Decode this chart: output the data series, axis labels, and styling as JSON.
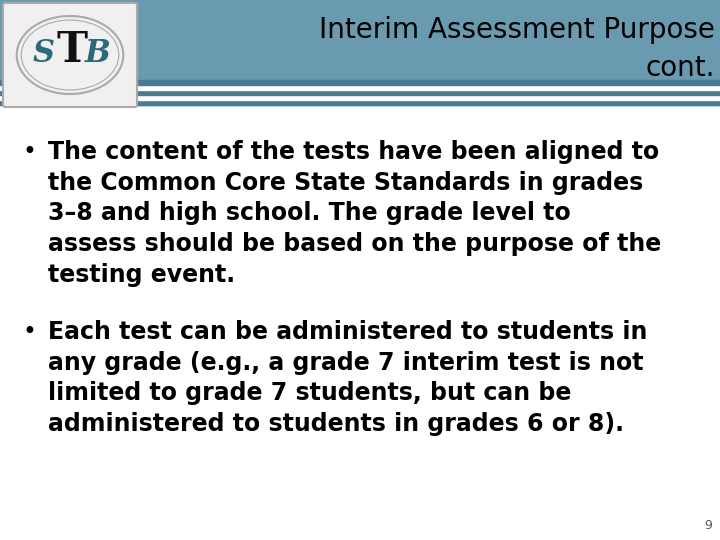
{
  "title_line1": "Interim Assessment Purpose",
  "title_line2": "cont.",
  "title_fontsize": 20,
  "title_color": "#000000",
  "header_bg_color": "#6a9aaf",
  "header_stripe_white": "#ffffff",
  "header_stripe_dark": "#4a7a94",
  "body_bg_color": "#ffffff",
  "bullet1_line1": "The content of the tests have been aligned to",
  "bullet1_line2": "the Common Core State Standards in grades",
  "bullet1_line3": "3–8 and high school. The grade level to",
  "bullet1_line4": "assess should be based on the purpose of the",
  "bullet1_line5": "testing event.",
  "bullet2_line1": "Each test can be administered to students in",
  "bullet2_line2": "any grade (e.g., a grade 7 interim test is not",
  "bullet2_line3": "limited to grade 7 students, but can be",
  "bullet2_line4": "administered to students in grades 6 or 8).",
  "bullet_fontsize": 17,
  "bullet_color": "#000000",
  "page_number": "9",
  "logo_bg": "#f0f0f0",
  "logo_border": "#aaaaaa",
  "logo_S_color": "#2a6a7a",
  "logo_T_color": "#111111",
  "logo_B_color": "#2a6a7a"
}
